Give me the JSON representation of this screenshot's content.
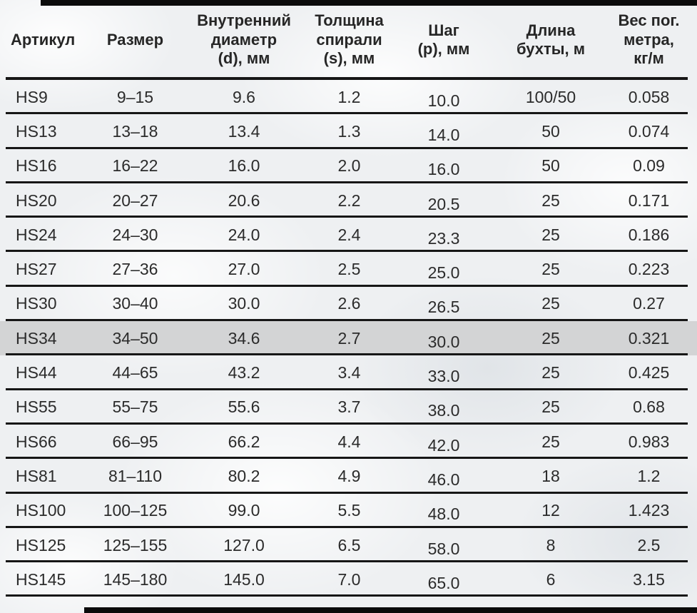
{
  "chart_data": {
    "type": "table",
    "title": "",
    "columns": [
      "Артикул",
      "Размер",
      "Внутренний\nдиаметр\n(d), мм",
      "Толщина\nспирали\n(s), мм",
      "Шаг\n(p), мм",
      "Длина\nбухты, м",
      "Вес пог.\nметра,\nкг/м"
    ],
    "highlighted_row_index": 7,
    "rows": [
      [
        "HS9",
        "9–15",
        "9.6",
        "1.2",
        "10.0",
        "100/50",
        "0.058"
      ],
      [
        "HS13",
        "13–18",
        "13.4",
        "1.3",
        "14.0",
        "50",
        "0.074"
      ],
      [
        "HS16",
        "16–22",
        "16.0",
        "2.0",
        "16.0",
        "50",
        "0.09"
      ],
      [
        "HS20",
        "20–27",
        "20.6",
        "2.2",
        "20.5",
        "25",
        "0.171"
      ],
      [
        "HS24",
        "24–30",
        "24.0",
        "2.4",
        "23.3",
        "25",
        "0.186"
      ],
      [
        "HS27",
        "27–36",
        "27.0",
        "2.5",
        "25.0",
        "25",
        "0.223"
      ],
      [
        "HS30",
        "30–40",
        "30.0",
        "2.6",
        "26.5",
        "25",
        "0.27"
      ],
      [
        "HS34",
        "34–50",
        "34.6",
        "2.7",
        "30.0",
        "25",
        "0.321"
      ],
      [
        "HS44",
        "44–65",
        "43.2",
        "3.4",
        "33.0",
        "25",
        "0.425"
      ],
      [
        "HS55",
        "55–75",
        "55.6",
        "3.7",
        "38.0",
        "25",
        "0.68"
      ],
      [
        "HS66",
        "66–95",
        "66.2",
        "4.4",
        "42.0",
        "25",
        "0.983"
      ],
      [
        "HS81",
        "81–110",
        "80.2",
        "4.9",
        "46.0",
        "18",
        "1.2"
      ],
      [
        "HS100",
        "100–125",
        "99.0",
        "5.5",
        "48.0",
        "12",
        "1.423"
      ],
      [
        "HS125",
        "125–155",
        "127.0",
        "6.5",
        "58.0",
        "8",
        "2.5"
      ],
      [
        "HS145",
        "145–180",
        "145.0",
        "7.0",
        "65.0",
        "6",
        "3.15"
      ]
    ]
  }
}
